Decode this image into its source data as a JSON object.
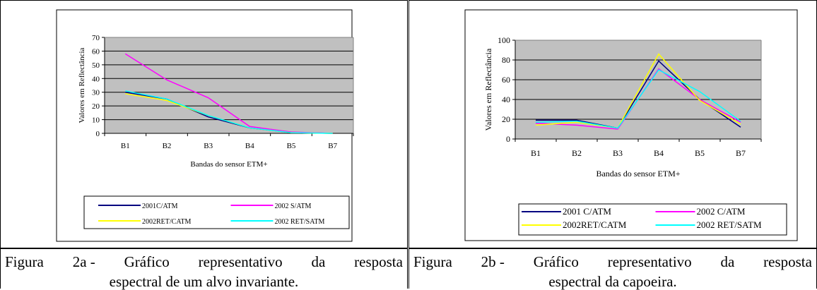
{
  "chart_data": [
    {
      "type": "line",
      "categories": [
        "B1",
        "B2",
        "B3",
        "B4",
        "B5",
        "B7"
      ],
      "ylabel": "Valores em Reflectância",
      "xlabel": "Bandas do sensor ETM+",
      "ylim": [
        0,
        70
      ],
      "yticks": [
        0,
        10,
        20,
        30,
        40,
        50,
        60,
        70
      ],
      "grid": true,
      "legend": "bottom",
      "plot_background": "#c0c0c0",
      "series": [
        {
          "name": "2001C/ATM",
          "color": "#000080",
          "values": [
            30,
            25,
            12,
            4,
            0.5,
            0
          ]
        },
        {
          "name": "2002 S/ATM",
          "color": "#ff00ff",
          "values": [
            58,
            39,
            26,
            5,
            1,
            0
          ]
        },
        {
          "name": "2002RET/CATM",
          "color": "#ffff00",
          "values": [
            29,
            24,
            13,
            4,
            0.5,
            0
          ]
        },
        {
          "name": "2002 RET/SATM",
          "color": "#00ffff",
          "values": [
            31,
            25,
            13,
            4,
            0.5,
            0
          ]
        }
      ]
    },
    {
      "type": "line",
      "categories": [
        "B1",
        "B2",
        "B3",
        "B4",
        "B5",
        "B7"
      ],
      "ylabel": "Valores em Reflectância",
      "xlabel": "Bandas do sensor ETM+",
      "ylim": [
        0,
        100
      ],
      "yticks": [
        0,
        20,
        40,
        60,
        80,
        100
      ],
      "grid": true,
      "legend": "bottom",
      "plot_background": "#c0c0c0",
      "series": [
        {
          "name": "2001 C/ATM",
          "color": "#000080",
          "values": [
            19,
            19,
            11,
            79,
            40,
            12
          ]
        },
        {
          "name": "2002 C/ATM",
          "color": "#ff00ff",
          "values": [
            16,
            14,
            10,
            71,
            40,
            17
          ]
        },
        {
          "name": "2002RET/CATM",
          "color": "#ffff00",
          "values": [
            14,
            17,
            11,
            86,
            39,
            15
          ]
        },
        {
          "name": "2002 RET/SATM",
          "color": "#00ffff",
          "values": [
            17,
            18,
            11,
            70,
            48,
            18
          ]
        }
      ]
    }
  ],
  "captions": [
    {
      "w1": "Figura",
      "w2": "2a -",
      "w3": "Gráfico",
      "w4": "representativo",
      "w5": "da",
      "w6": "resposta",
      "line2": "espectral de um alvo invariante."
    },
    {
      "w1": "Figura",
      "w2": "2b -",
      "w3": "Gráfico",
      "w4": "representativo",
      "w5": "da",
      "w6": "resposta",
      "line2": "espectral da capoeira."
    }
  ]
}
